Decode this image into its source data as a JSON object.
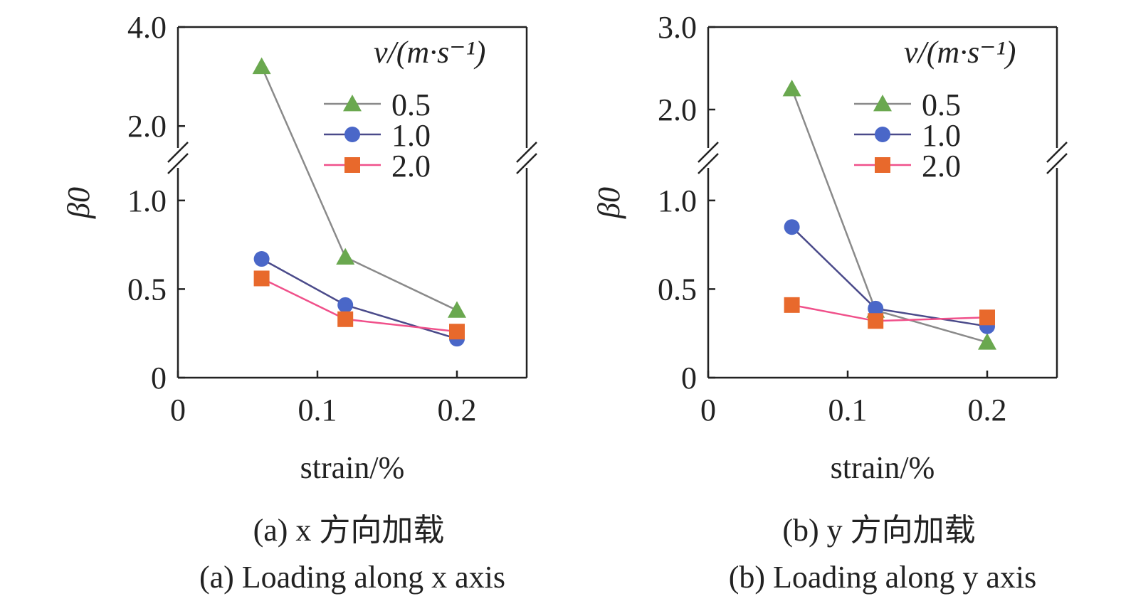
{
  "chart_data": [
    {
      "type": "line",
      "panel": "a",
      "caption_cn": "(a) x 方向加载",
      "caption_en": "(a) Loading along x axis",
      "xlabel": "strain/%",
      "ylabel": "β0",
      "xlim": [
        0,
        0.25
      ],
      "x_ticks": [
        "0",
        "0.1",
        "0.2"
      ],
      "y_ticks": [
        "0",
        "0.5",
        "1.0",
        "2.0",
        "4.0"
      ],
      "y_axis_break": true,
      "legend_title": "v/(m·s⁻¹)",
      "legend_position": "top-right",
      "series": [
        {
          "name": "0.5",
          "marker": "triangle",
          "x": [
            0.06,
            0.12,
            0.2
          ],
          "y": [
            3.2,
            0.68,
            0.38
          ]
        },
        {
          "name": "1.0",
          "marker": "circle",
          "x": [
            0.06,
            0.12,
            0.2
          ],
          "y": [
            0.67,
            0.41,
            0.22
          ]
        },
        {
          "name": "2.0",
          "marker": "square",
          "x": [
            0.06,
            0.12,
            0.2
          ],
          "y": [
            0.56,
            0.33,
            0.26
          ]
        }
      ]
    },
    {
      "type": "line",
      "panel": "b",
      "caption_cn": "(b) y 方向加载",
      "caption_en": "(b) Loading along y axis",
      "xlabel": "strain/%",
      "ylabel": "β0",
      "xlim": [
        0,
        0.25
      ],
      "x_ticks": [
        "0",
        "0.1",
        "0.2"
      ],
      "y_ticks": [
        "0",
        "0.5",
        "1.0",
        "2.0",
        "3.0"
      ],
      "y_axis_break": true,
      "legend_title": "v/(m·s⁻¹)",
      "legend_position": "top-right",
      "series": [
        {
          "name": "0.5",
          "marker": "triangle",
          "x": [
            0.06,
            0.12,
            0.2
          ],
          "y": [
            2.25,
            0.38,
            0.2
          ]
        },
        {
          "name": "1.0",
          "marker": "circle",
          "x": [
            0.06,
            0.12,
            0.2
          ],
          "y": [
            0.85,
            0.39,
            0.29
          ]
        },
        {
          "name": "2.0",
          "marker": "square",
          "x": [
            0.06,
            0.12,
            0.2
          ],
          "y": [
            0.41,
            0.32,
            0.34
          ]
        }
      ]
    }
  ],
  "colors": {
    "triangle": "#6aa84f",
    "circle": "#4a67c8",
    "square": "#e8692c",
    "line_0.5": "#8a8a8a",
    "line_1.0": "#4a4a8a",
    "line_2.0": "#f0508a",
    "axis": "#222222"
  }
}
